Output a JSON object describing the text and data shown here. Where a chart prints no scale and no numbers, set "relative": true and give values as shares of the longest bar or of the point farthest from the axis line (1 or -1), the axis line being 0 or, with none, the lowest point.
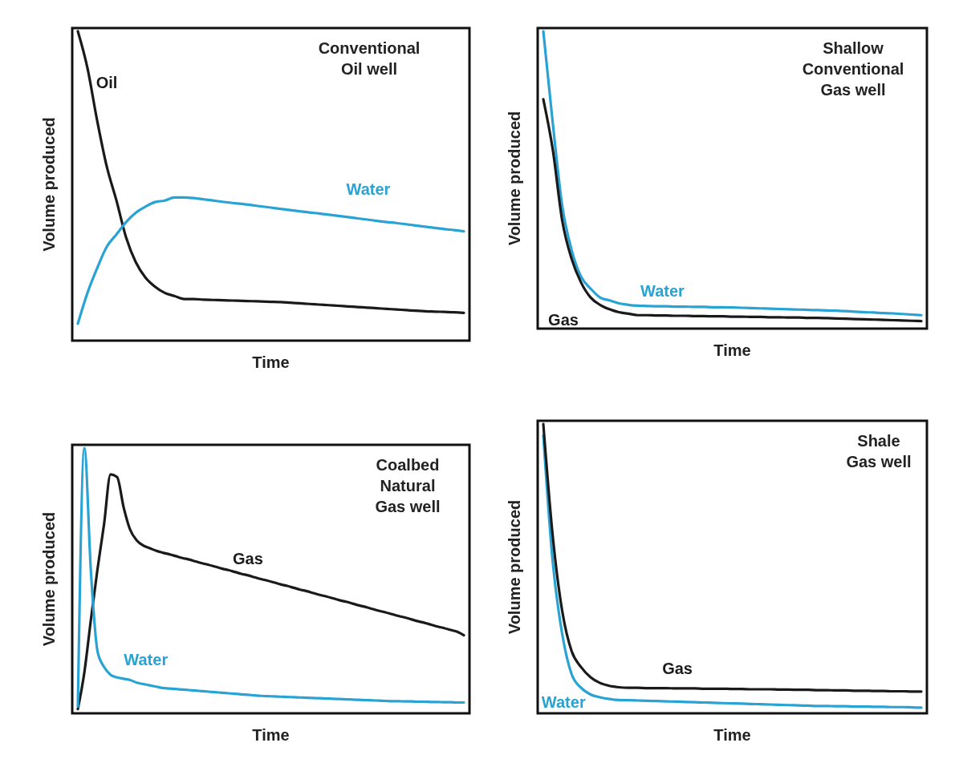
{
  "chart_data": [
    {
      "type": "line",
      "relative": true,
      "title": "Conventional\nOil well",
      "xlabel": "Time",
      "ylabel": "Volume produced",
      "categories": [
        null,
        null,
        null,
        null,
        null,
        null,
        null,
        null,
        null,
        null,
        null,
        null,
        null,
        null,
        null,
        null,
        null,
        null,
        null,
        null,
        null,
        null,
        null,
        null,
        null,
        null,
        null,
        null,
        null,
        null,
        null,
        null,
        null,
        null,
        null,
        null,
        null,
        null,
        null,
        null,
        null
      ],
      "series": [
        {
          "name": "Oil",
          "color": "#1a1a1a",
          "values": [
            1.0,
            0.88,
            0.71,
            0.56,
            0.45,
            0.33,
            0.25,
            0.2,
            0.17,
            0.15,
            0.14,
            0.13,
            0.13,
            0.128,
            0.127,
            0.126,
            0.125,
            0.124,
            0.123,
            0.122,
            0.121,
            0.12,
            0.118,
            0.116,
            0.114,
            0.112,
            0.11,
            0.108,
            0.106,
            0.104,
            0.102,
            0.1,
            0.098,
            0.096,
            0.094,
            0.092,
            0.09,
            0.089,
            0.088,
            0.087,
            0.085
          ]
        },
        {
          "name": "Water",
          "color": "#29a3d3",
          "values": [
            0.05,
            0.15,
            0.23,
            0.3,
            0.34,
            0.38,
            0.41,
            0.43,
            0.445,
            0.45,
            0.46,
            0.46,
            0.458,
            0.454,
            0.45,
            0.446,
            0.442,
            0.439,
            0.435,
            0.431,
            0.427,
            0.423,
            0.419,
            0.415,
            0.411,
            0.408,
            0.404,
            0.4,
            0.396,
            0.392,
            0.388,
            0.384,
            0.38,
            0.377,
            0.373,
            0.369,
            0.365,
            0.361,
            0.357,
            0.354,
            0.35
          ]
        }
      ]
    },
    {
      "type": "line",
      "relative": true,
      "title": "Shallow\nConventional\nGas well",
      "xlabel": "Time",
      "ylabel": "Volume produced",
      "categories": [
        null,
        null,
        null,
        null,
        null,
        null,
        null,
        null,
        null,
        null,
        null,
        null,
        null,
        null,
        null,
        null,
        null,
        null,
        null,
        null,
        null,
        null,
        null,
        null,
        null,
        null,
        null,
        null,
        null,
        null,
        null,
        null,
        null,
        null,
        null,
        null,
        null,
        null,
        null,
        null,
        null
      ],
      "series": [
        {
          "name": "Water",
          "color": "#29a3d3",
          "values": [
            1.0,
            0.69,
            0.41,
            0.26,
            0.17,
            0.13,
            0.1,
            0.09,
            0.08,
            0.075,
            0.072,
            0.071,
            0.07,
            0.07,
            0.069,
            0.069,
            0.068,
            0.068,
            0.067,
            0.067,
            0.066,
            0.065,
            0.064,
            0.063,
            0.062,
            0.061,
            0.06,
            0.059,
            0.058,
            0.057,
            0.056,
            0.055,
            0.054,
            0.052,
            0.05,
            0.049,
            0.047,
            0.046,
            0.044,
            0.042,
            0.04
          ]
        },
        {
          "name": "Gas",
          "color": "#1a1a1a",
          "values": [
            0.77,
            0.6,
            0.36,
            0.23,
            0.15,
            0.1,
            0.075,
            0.06,
            0.05,
            0.045,
            0.04,
            0.04,
            0.039,
            0.039,
            0.038,
            0.038,
            0.037,
            0.037,
            0.036,
            0.036,
            0.035,
            0.035,
            0.034,
            0.034,
            0.033,
            0.033,
            0.032,
            0.032,
            0.031,
            0.031,
            0.03,
            0.029,
            0.028,
            0.027,
            0.026,
            0.025,
            0.024,
            0.023,
            0.022,
            0.021,
            0.02
          ]
        }
      ]
    },
    {
      "type": "line",
      "relative": true,
      "title": "Coalbed\nNatural\nGas well",
      "xlabel": "Time",
      "ylabel": "Volume produced",
      "categories": [
        null,
        null,
        null,
        null,
        null,
        null,
        null,
        null,
        null,
        null,
        null,
        null,
        null,
        null,
        null,
        null,
        null,
        null,
        null,
        null,
        null,
        null,
        null,
        null,
        null,
        null,
        null,
        null,
        null,
        null,
        null,
        null,
        null,
        null,
        null,
        null,
        null,
        null,
        null,
        null,
        null,
        null,
        null,
        null,
        null,
        null,
        null,
        null,
        null,
        null,
        null,
        null,
        null,
        null,
        null,
        null,
        null,
        null,
        null,
        null
      ],
      "series": [
        {
          "name": "Gas",
          "color": "#1a1a1a",
          "values": [
            0.01,
            0.15,
            0.35,
            0.54,
            0.71,
            0.9,
            0.89,
            0.775,
            0.69,
            0.65,
            0.63,
            0.62,
            0.61,
            0.603,
            0.597,
            0.59,
            0.583,
            0.577,
            0.57,
            0.563,
            0.557,
            0.55,
            0.543,
            0.537,
            0.53,
            0.523,
            0.517,
            0.51,
            0.503,
            0.497,
            0.49,
            0.483,
            0.477,
            0.47,
            0.463,
            0.457,
            0.45,
            0.443,
            0.437,
            0.43,
            0.423,
            0.417,
            0.41,
            0.403,
            0.397,
            0.39,
            0.383,
            0.377,
            0.37,
            0.363,
            0.357,
            0.35,
            0.343,
            0.337,
            0.33,
            0.323,
            0.317,
            0.31,
            0.303,
            0.29
          ]
        },
        {
          "name": "Water",
          "color": "#29a3d3",
          "values": [
            0.02,
            1.0,
            0.53,
            0.23,
            0.17,
            0.14,
            0.13,
            0.125,
            0.12,
            0.11,
            0.105,
            0.1,
            0.095,
            0.09,
            0.088,
            0.086,
            0.084,
            0.082,
            0.08,
            0.078,
            0.076,
            0.074,
            0.072,
            0.07,
            0.068,
            0.066,
            0.064,
            0.062,
            0.06,
            0.059,
            0.058,
            0.057,
            0.056,
            0.055,
            0.054,
            0.053,
            0.052,
            0.051,
            0.05,
            0.049,
            0.048,
            0.047,
            0.046,
            0.045,
            0.044,
            0.043,
            0.042,
            0.041,
            0.04,
            0.04,
            0.039,
            0.039,
            0.038,
            0.038,
            0.037,
            0.037,
            0.036,
            0.036,
            0.035,
            0.035
          ]
        }
      ]
    },
    {
      "type": "line",
      "relative": true,
      "title": "Shale\nGas well",
      "xlabel": "Time",
      "ylabel": "Volume produced",
      "categories": [
        null,
        null,
        null,
        null,
        null,
        null,
        null,
        null,
        null,
        null,
        null,
        null,
        null,
        null,
        null,
        null,
        null,
        null,
        null,
        null,
        null,
        null,
        null,
        null,
        null,
        null,
        null,
        null,
        null,
        null,
        null,
        null,
        null,
        null,
        null,
        null,
        null,
        null,
        null,
        null,
        null
      ],
      "series": [
        {
          "name": "Water",
          "color": "#29a3d3",
          "values": [
            0.96,
            0.52,
            0.27,
            0.13,
            0.083,
            0.06,
            0.05,
            0.044,
            0.041,
            0.04,
            0.039,
            0.038,
            0.037,
            0.036,
            0.035,
            0.034,
            0.033,
            0.032,
            0.031,
            0.03,
            0.029,
            0.028,
            0.027,
            0.026,
            0.025,
            0.024,
            0.023,
            0.022,
            0.021,
            0.02,
            0.02,
            0.019,
            0.019,
            0.018,
            0.018,
            0.017,
            0.017,
            0.016,
            0.016,
            0.015,
            0.014
          ]
        },
        {
          "name": "Gas",
          "color": "#1a1a1a",
          "values": [
            1.0,
            0.61,
            0.35,
            0.21,
            0.155,
            0.12,
            0.1,
            0.09,
            0.085,
            0.083,
            0.083,
            0.082,
            0.082,
            0.082,
            0.081,
            0.081,
            0.081,
            0.08,
            0.08,
            0.08,
            0.079,
            0.079,
            0.078,
            0.078,
            0.078,
            0.077,
            0.077,
            0.076,
            0.076,
            0.075,
            0.075,
            0.074,
            0.074,
            0.073,
            0.073,
            0.072,
            0.072,
            0.071,
            0.071,
            0.07,
            0.07
          ]
        }
      ]
    }
  ]
}
